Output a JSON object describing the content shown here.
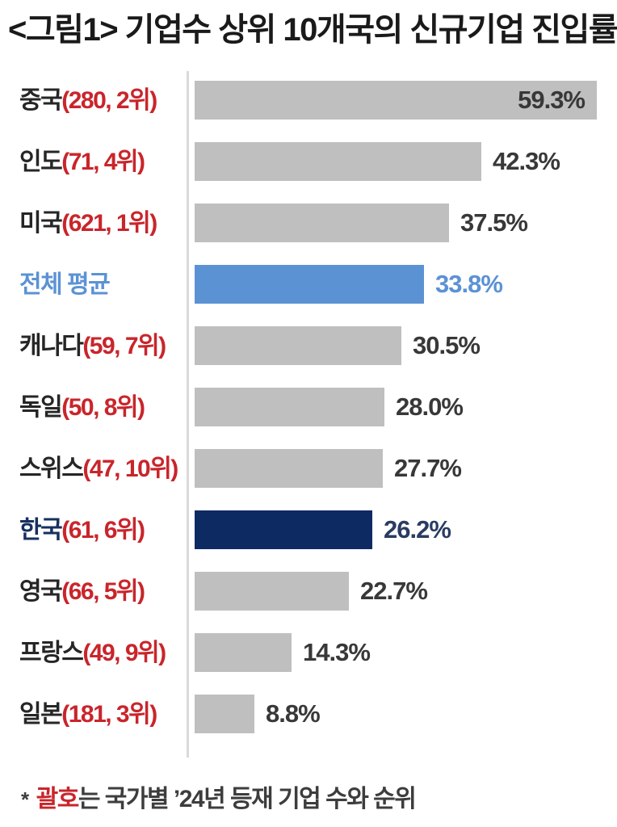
{
  "title": "<그림1> 기업수 상위 10개국의 신규기업 진입률",
  "footnote": {
    "marker": "*",
    "highlight": "괄호",
    "rest": "는 국가별 ’24년 등재 기업 수와 순위"
  },
  "colors": {
    "bar_gray": "#bfbfbf",
    "bar_blue": "#5b92d4",
    "bar_navy": "#0e2a63",
    "paren_red": "#c9252b",
    "average_label_blue": "#5b92d4",
    "korea_label_navy": "#17305f",
    "korea_value_navy": "#2a3c63",
    "value_dark": "#383838",
    "axis_line_gray": "#d9d9d9",
    "title_black": "#1a1a1a"
  },
  "chart_data": {
    "type": "bar",
    "orientation": "horizontal",
    "title": "<그림1> 기업수 상위 10개국의 신규기업 진입률",
    "value_unit": "%",
    "xlim": [
      0,
      60
    ],
    "grid": false,
    "legend": "none",
    "categories": [
      "중국(280, 2위)",
      "인도(71, 4위)",
      "미국(621, 1위)",
      "전체 평균",
      "캐나다(59, 7위)",
      "독일(50, 8위)",
      "스위스(47, 10위)",
      "한국(61, 6위)",
      "영국(66, 5위)",
      "프랑스(49, 9위)",
      "일본(181, 3위)"
    ],
    "values": [
      59.3,
      42.3,
      37.5,
      33.8,
      30.5,
      28.0,
      27.7,
      26.2,
      22.7,
      14.3,
      8.8
    ],
    "rows": [
      {
        "name": "중국",
        "paren": "(280, 2위)",
        "value": 59.3,
        "display": "59.3%",
        "style": "default",
        "value_inside": true
      },
      {
        "name": "인도",
        "paren": "(71, 4위)",
        "value": 42.3,
        "display": "42.3%",
        "style": "default",
        "value_inside": false
      },
      {
        "name": "미국",
        "paren": "(621, 1위)",
        "value": 37.5,
        "display": "37.5%",
        "style": "default",
        "value_inside": false
      },
      {
        "name": "전체 평균",
        "paren": "",
        "value": 33.8,
        "display": "33.8%",
        "style": "average",
        "value_inside": false
      },
      {
        "name": "캐나다",
        "paren": "(59, 7위)",
        "value": 30.5,
        "display": "30.5%",
        "style": "default",
        "value_inside": false
      },
      {
        "name": "독일",
        "paren": "(50, 8위)",
        "value": 28.0,
        "display": "28.0%",
        "style": "default",
        "value_inside": false
      },
      {
        "name": "스위스",
        "paren": "(47, 10위)",
        "value": 27.7,
        "display": "27.7%",
        "style": "default",
        "value_inside": false
      },
      {
        "name": "한국",
        "paren": "(61, 6위)",
        "value": 26.2,
        "display": "26.2%",
        "style": "korea",
        "value_inside": false
      },
      {
        "name": "영국",
        "paren": "(66, 5위)",
        "value": 22.7,
        "display": "22.7%",
        "style": "default",
        "value_inside": false
      },
      {
        "name": "프랑스",
        "paren": "(49, 9위)",
        "value": 14.3,
        "display": "14.3%",
        "style": "default",
        "value_inside": false
      },
      {
        "name": "일본",
        "paren": "(181, 3위)",
        "value": 8.8,
        "display": "8.8%",
        "style": "default",
        "value_inside": false
      }
    ]
  }
}
